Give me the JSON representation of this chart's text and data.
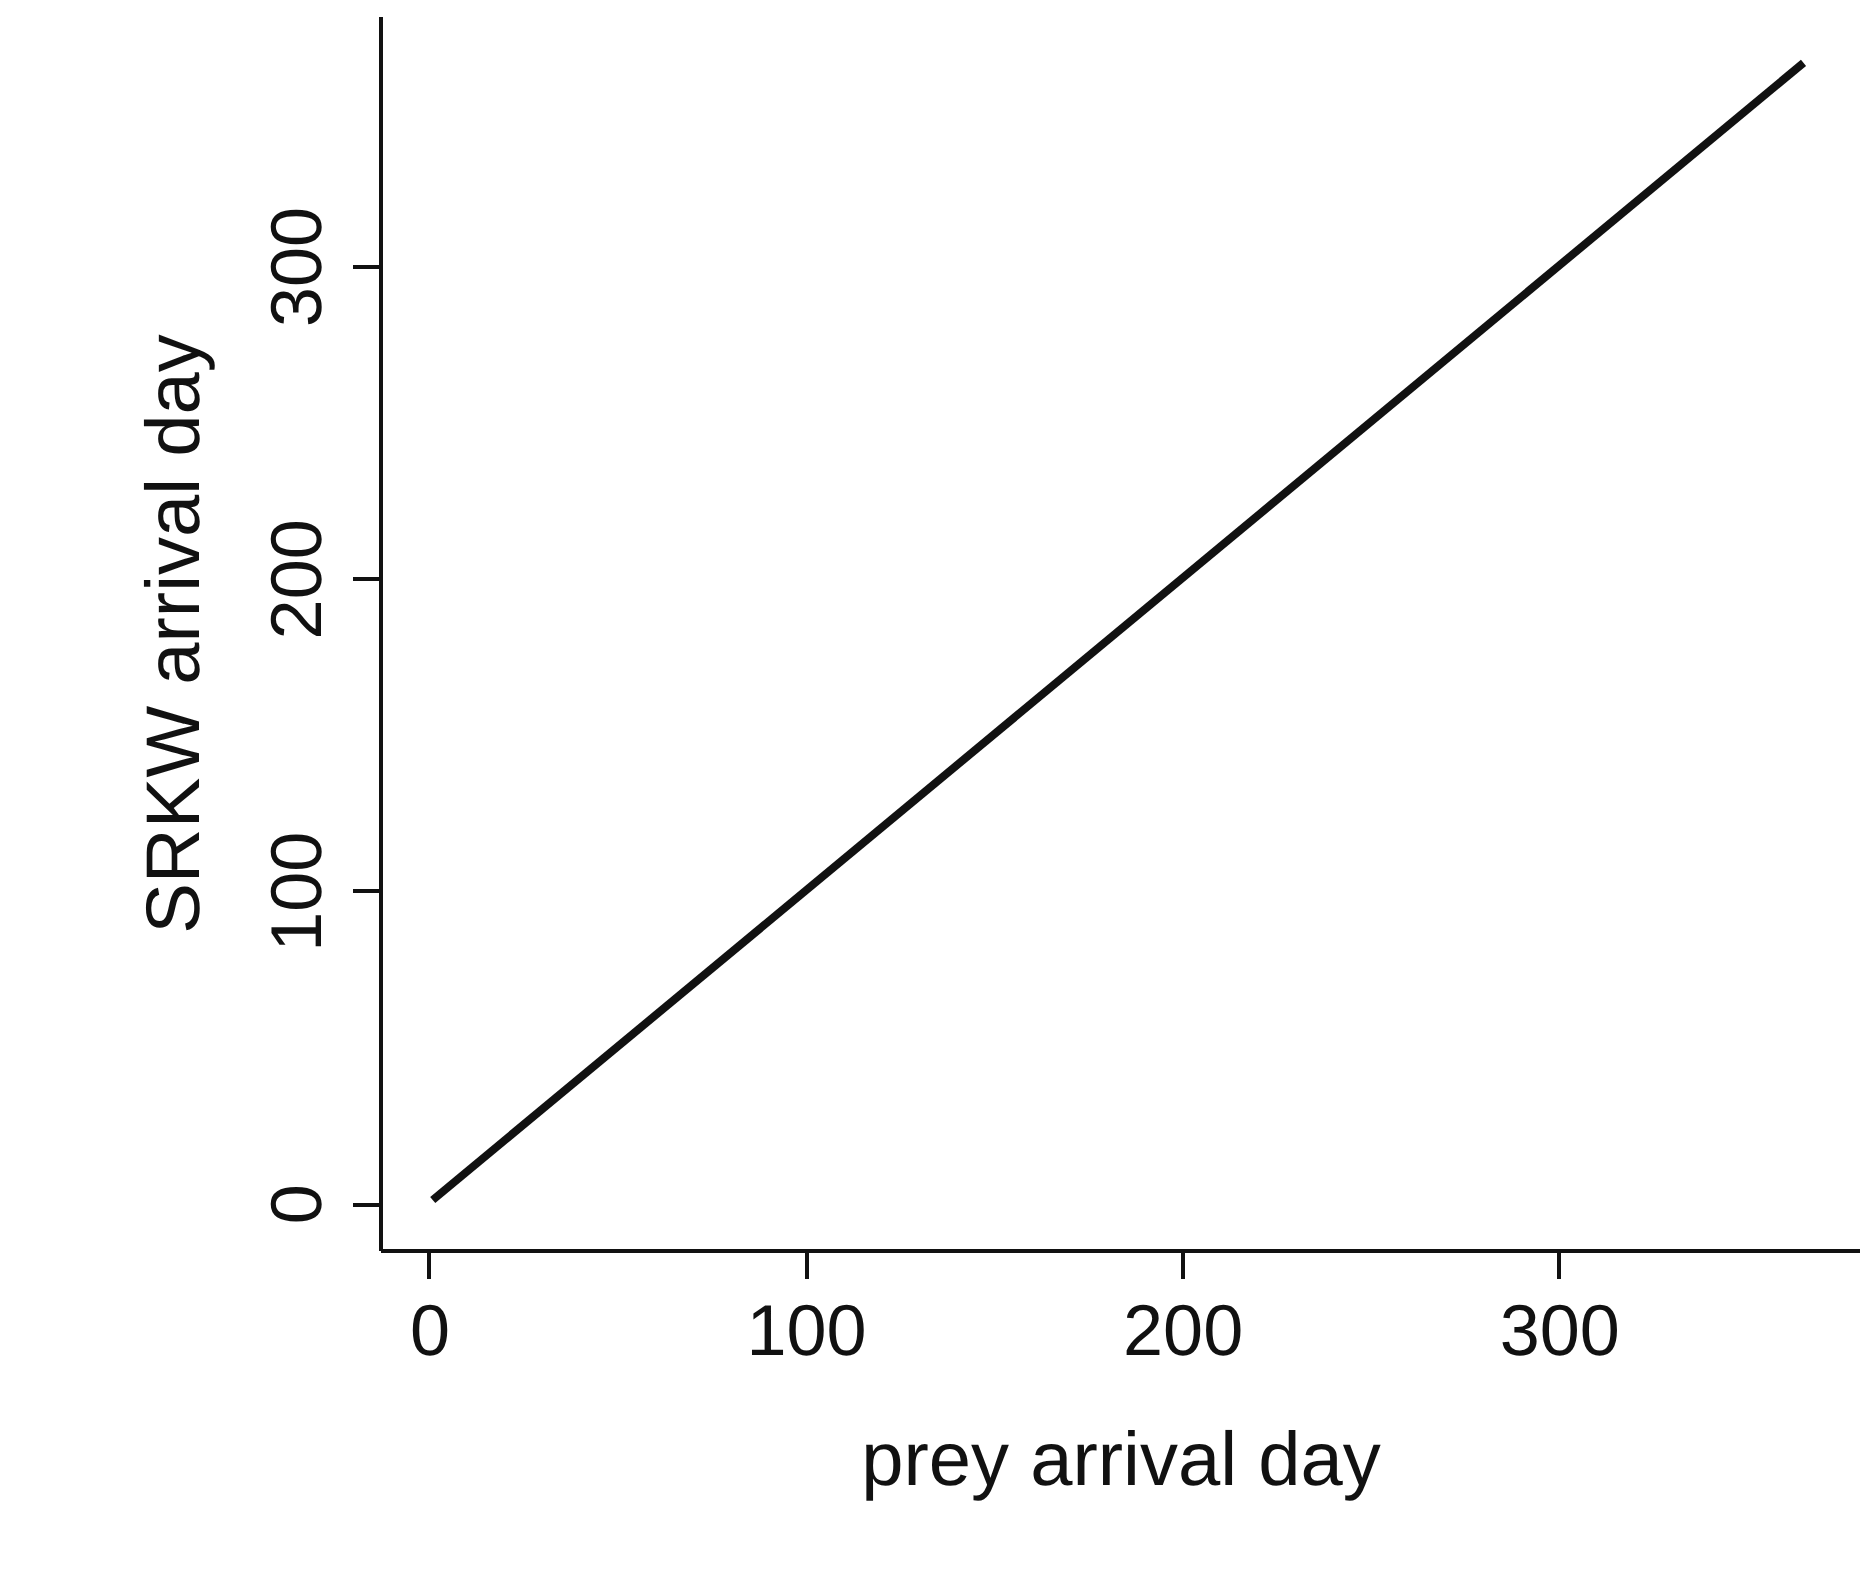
{
  "chart_data": {
    "type": "line",
    "xlabel": "prey arrival day",
    "ylabel": "SRKW arrival day",
    "x": [
      1,
      365
    ],
    "series": [
      {
        "color": "#111111",
        "values": [
          1,
          365
        ]
      }
    ],
    "xlim": [
      -13,
      380
    ],
    "ylim": [
      -15,
      380
    ],
    "xticks": [
      0,
      100,
      200,
      300
    ],
    "yticks": [
      0,
      100,
      200,
      300
    ],
    "grid": false,
    "marker": "none",
    "line_style": "solid"
  }
}
